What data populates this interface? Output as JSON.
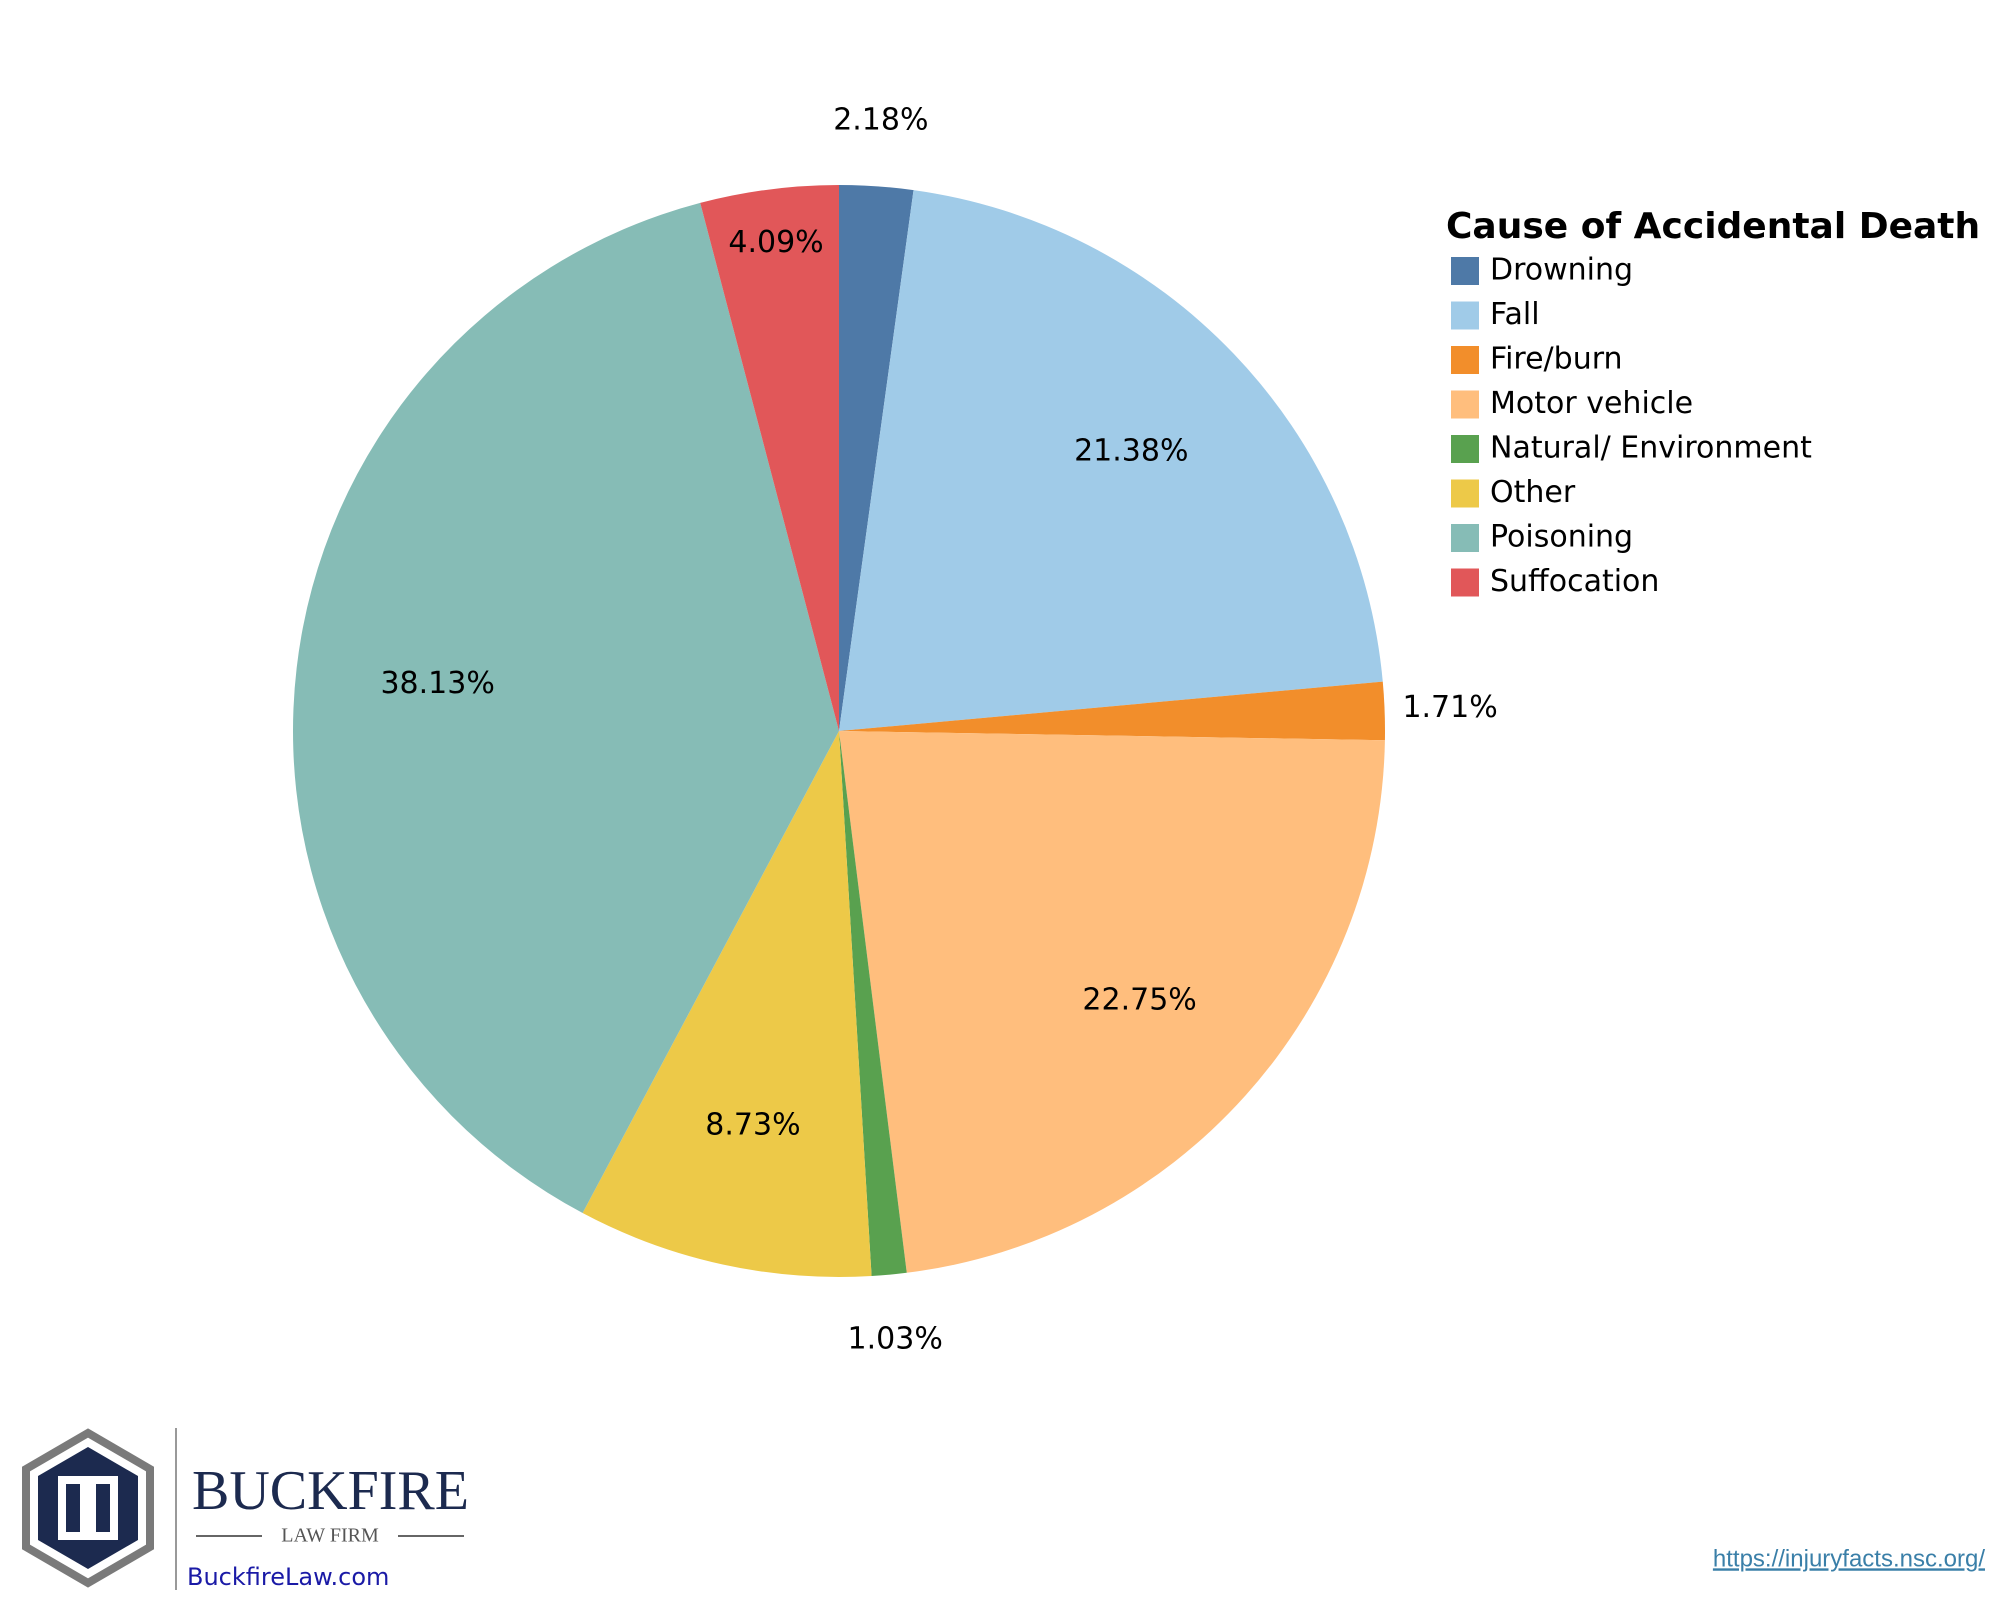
{
  "chart_data": {
    "type": "pie",
    "legend_title": "Cause of Accidental Death",
    "categories": [
      "Drowning",
      "Fall",
      "Fire/burn",
      "Motor vehicle",
      "Natural/ Environment",
      "Other",
      "Poisoning",
      "Suffocation"
    ],
    "values": [
      2.18,
      21.38,
      1.71,
      22.75,
      1.03,
      8.73,
      38.13,
      4.09
    ],
    "value_labels": [
      "2.18%",
      "21.38%",
      "1.71%",
      "22.75%",
      "1.03%",
      "8.73%",
      "38.13%",
      "4.09%"
    ],
    "colors": [
      "#4e79a7",
      "#a0cbe8",
      "#f28e2b",
      "#ffbe7d",
      "#59a14f",
      "#edc948",
      "#86bcb6",
      "#e15759"
    ],
    "legend": "top-right"
  },
  "branding": {
    "name": "BUCKFIRE",
    "subtitle": "LAW FIRM",
    "website": "BuckfireLaw.com"
  },
  "source": "https://injuryfacts.nsc.org/"
}
